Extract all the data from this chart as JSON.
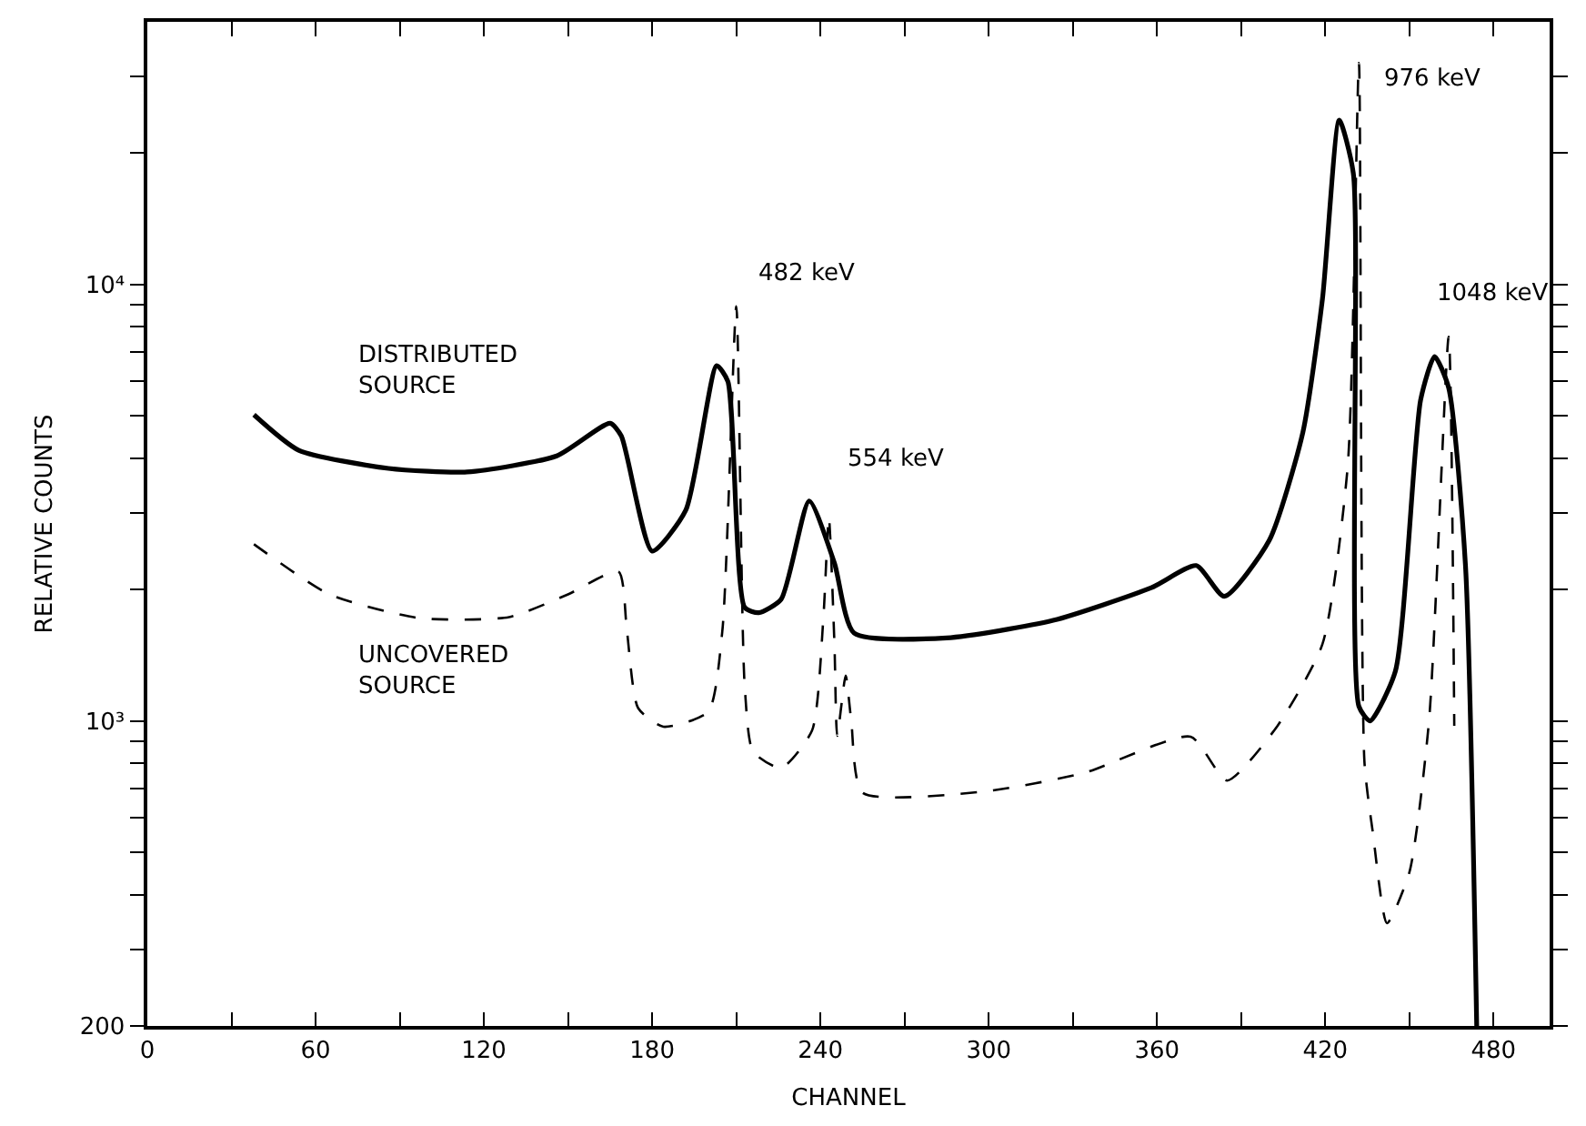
{
  "chart_data": {
    "type": "line",
    "xlabel": "CHANNEL",
    "ylabel": "RELATIVE COUNTS",
    "log": "y",
    "grid": false,
    "legend": false,
    "marker": "none",
    "xlim": [
      0,
      500
    ],
    "xticks": [
      0,
      {
        "value": 30,
        "label": null
      },
      60,
      {
        "value": 90,
        "label": null
      },
      120,
      {
        "value": 150,
        "label": null
      },
      180,
      {
        "value": 210,
        "label": null
      },
      240,
      {
        "value": 270,
        "label": null
      },
      300,
      {
        "value": 330,
        "label": null
      },
      360,
      {
        "value": 390,
        "label": null
      },
      420,
      {
        "value": 450,
        "label": null
      },
      480
    ],
    "ylim": [
      200,
      40000
    ],
    "yticks": [
      200,
      {
        "value": 300,
        "label": null
      },
      {
        "value": 400,
        "label": null
      },
      {
        "value": 500,
        "label": null
      },
      {
        "value": 600,
        "label": null
      },
      {
        "value": 700,
        "label": null
      },
      {
        "value": 800,
        "label": null
      },
      {
        "value": 900,
        "label": null
      },
      {
        "value": 1000,
        "label": "10³"
      },
      {
        "value": 2000,
        "label": null
      },
      {
        "value": 3000,
        "label": null
      },
      {
        "value": 4000,
        "label": null
      },
      {
        "value": 5000,
        "label": null
      },
      {
        "value": 6000,
        "label": null
      },
      {
        "value": 7000,
        "label": null
      },
      {
        "value": 8000,
        "label": null
      },
      {
        "value": 9000,
        "label": null
      },
      {
        "value": 10000,
        "label": "10⁴"
      },
      {
        "value": 20000,
        "label": null
      },
      {
        "value": 30000,
        "label": null
      }
    ],
    "series": [
      {
        "name": "DISTRIBUTED SOURCE",
        "color": "#000000",
        "line_style": "solid",
        "x": [
          38,
          54,
          86,
          114,
          146,
          165,
          169,
          180,
          192,
          203,
          207,
          213,
          218,
          226,
          236,
          245,
          252,
          285,
          323,
          358,
          374,
          384,
          400,
          412,
          419,
          425,
          430,
          432,
          436,
          445,
          454,
          459,
          464,
          470,
          474
        ],
        "values": [
          5030,
          4170,
          3790,
          3720,
          4050,
          4810,
          4500,
          2450,
          3040,
          6520,
          6000,
          1820,
          1770,
          1900,
          3190,
          2300,
          1590,
          1550,
          1700,
          2020,
          2270,
          1930,
          2590,
          4580,
          9270,
          23800,
          18000,
          1080,
          1000,
          1300,
          5440,
          6840,
          5800,
          2270,
          200
        ]
      },
      {
        "name": "UNCOVERED SOURCE",
        "color": "#000000",
        "line_style": "dashed",
        "x": [
          38,
          65,
          97,
          129,
          150,
          168,
          171,
          175,
          184,
          200,
          205,
          210,
          213,
          216,
          226,
          237,
          241,
          243,
          245,
          246,
          249,
          251,
          255,
          299,
          334,
          372,
          385,
          403,
          419,
          428,
          432,
          434,
          437,
          442,
          450,
          457,
          464,
          466
        ],
        "values": [
          2540,
          1950,
          1720,
          1730,
          1950,
          2200,
          1610,
          1070,
          970,
          1050,
          1600,
          8920,
          1200,
          850,
          780,
          950,
          1700,
          2930,
          1500,
          925,
          1270,
          1000,
          685,
          690,
          760,
          920,
          730,
          975,
          1500,
          3830,
          32200,
          800,
          553,
          344,
          450,
          1000,
          7590,
          975
        ]
      }
    ],
    "annotations": [
      {
        "text": "482 keV",
        "x": 210,
        "y": 8920
      },
      {
        "text": "554 keV",
        "x": 243,
        "y": 2930
      },
      {
        "text": "976 keV",
        "x": 432,
        "y": 32200
      },
      {
        "text": "1048 keV",
        "x": 464,
        "y": 7590
      }
    ]
  }
}
